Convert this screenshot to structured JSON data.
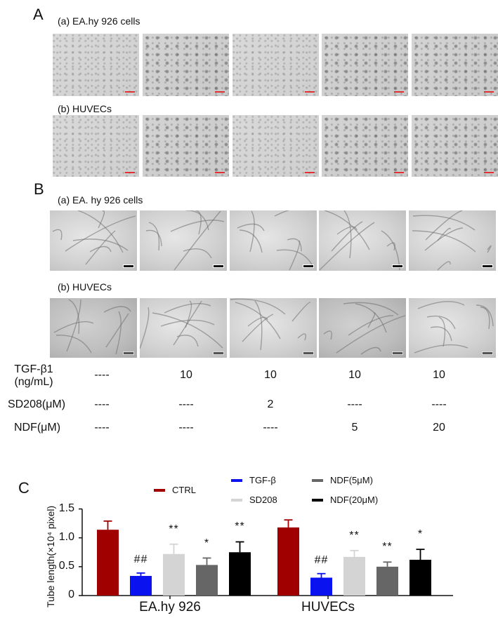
{
  "panels": {
    "A": {
      "letter": "A",
      "rows": [
        {
          "label": "(a) EA.hy 926 cells",
          "image_type": "cell-morphology-micrograph",
          "count": 5,
          "scale_bar_color": "#d33333"
        },
        {
          "label": "(b) HUVECs",
          "image_type": "cell-morphology-micrograph",
          "count": 5,
          "scale_bar_color": "#d33333"
        }
      ]
    },
    "B": {
      "letter": "B",
      "rows": [
        {
          "label": "(a) EA. hy 926 cells",
          "image_type": "tube-formation-micrograph",
          "count": 5,
          "scale_bar_color": "#111111"
        },
        {
          "label": "(b) HUVECs",
          "image_type": "tube-formation-micrograph",
          "count": 5,
          "scale_bar_color": "#111111"
        }
      ]
    },
    "conditions": {
      "rows": [
        {
          "label_line1": "TGF-β1",
          "label_line2": "(ng/mL)",
          "values": [
            "----",
            "10",
            "10",
            "10",
            "10"
          ]
        },
        {
          "label_line1": "SD208(μM)",
          "label_line2": "",
          "values": [
            "----",
            "----",
            "2",
            "----",
            "----"
          ]
        },
        {
          "label_line1": "NDF(μM)",
          "label_line2": "",
          "values": [
            "----",
            "----",
            "----",
            "5",
            "20"
          ]
        }
      ]
    },
    "C": {
      "letter": "C"
    }
  },
  "chart_data": {
    "type": "bar",
    "title": "",
    "xlabel": "",
    "ylabel": "Tube length(×10⁴ pixel)",
    "ylim": [
      0,
      1.5
    ],
    "yticks": [
      "0",
      "0.5",
      "1.0",
      "1.5"
    ],
    "grid": false,
    "legend_position": "top",
    "categories": [
      "EA.hy 926",
      "HUVECs"
    ],
    "series": [
      {
        "name": "CTRL",
        "color": "#a00000",
        "values": [
          1.14,
          1.18
        ],
        "errors": [
          0.15,
          0.13
        ],
        "significance": [
          "",
          ""
        ]
      },
      {
        "name": "TGF-β",
        "color": "#0a12f0",
        "values": [
          0.34,
          0.31
        ],
        "errors": [
          0.05,
          0.07
        ],
        "significance": [
          "##",
          "##"
        ]
      },
      {
        "name": "SD208",
        "color": "#d4d4d4",
        "values": [
          0.72,
          0.67
        ],
        "errors": [
          0.17,
          0.11
        ],
        "significance": [
          "**",
          "**"
        ]
      },
      {
        "name": "NDF(5μM)",
        "color": "#666666",
        "values": [
          0.53,
          0.5
        ],
        "errors": [
          0.12,
          0.08
        ],
        "significance": [
          "*",
          "**"
        ]
      },
      {
        "name": "NDF(20μM)",
        "color": "#000000",
        "values": [
          0.75,
          0.62
        ],
        "errors": [
          0.18,
          0.18
        ],
        "significance": [
          "**",
          "*"
        ]
      }
    ]
  }
}
